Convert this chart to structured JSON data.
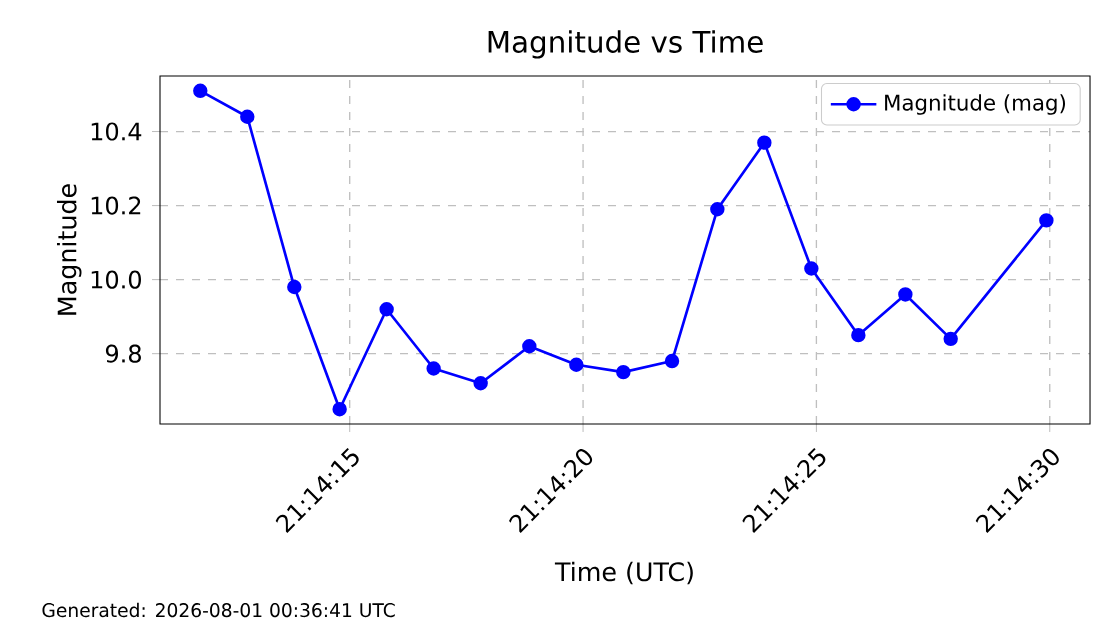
{
  "chart_data": {
    "type": "line",
    "title": "Magnitude vs Time",
    "xlabel": "Time (UTC)",
    "ylabel": "Magnitude",
    "x": [
      21.23661,
      21.23689,
      21.23717,
      21.23744,
      21.23772,
      21.238,
      21.23828,
      21.23857,
      21.23885,
      21.23913,
      21.23942,
      21.23969,
      21.23997,
      21.24025,
      21.24053,
      21.24081,
      21.24108,
      21.24165
    ],
    "series": [
      {
        "name": "Magnitude (mag)",
        "color": "#0000ff",
        "values": [
          10.51,
          10.44,
          9.98,
          9.65,
          9.92,
          9.76,
          9.72,
          9.82,
          9.77,
          9.75,
          9.78,
          10.19,
          10.37,
          10.03,
          9.85,
          9.96,
          9.84,
          10.16
        ]
      }
    ],
    "xlim": [
      21.23637,
      21.24191
    ],
    "xticks": [
      {
        "value": 21.2375,
        "label": "21:14:15"
      },
      {
        "value": 21.23889,
        "label": "21:14:20"
      },
      {
        "value": 21.24028,
        "label": "21:14:25"
      },
      {
        "value": 21.24167,
        "label": "21:14:30"
      }
    ],
    "ylim": [
      9.61,
      10.55
    ],
    "yticks": [
      {
        "value": 9.8,
        "label": "9.8"
      },
      {
        "value": 10.0,
        "label": "10.0"
      },
      {
        "value": 10.2,
        "label": "10.2"
      },
      {
        "value": 10.4,
        "label": "10.4"
      }
    ],
    "grid": true,
    "legend": "top right",
    "marker": "circle",
    "line_style": "solid",
    "annotations": [
      "Generated: 2026-08-01 00:36:41 UTC"
    ]
  }
}
